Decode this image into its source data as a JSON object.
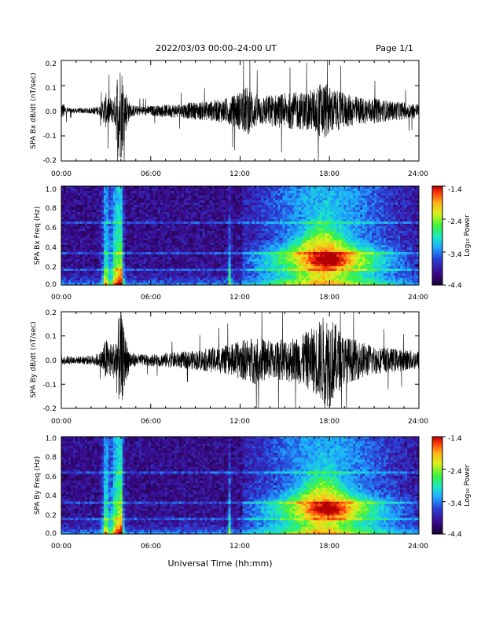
{
  "header": {
    "title": "2022/03/03  00:00–24:00 UT",
    "page": "Page 1/1"
  },
  "footer": {
    "xlabel": "Universal Time (hh:mm)"
  },
  "colors": {
    "trace": "#000000",
    "colormap": [
      "#1a0033",
      "#3b0a8c",
      "#2a3fd6",
      "#1ea8ff",
      "#19e6c8",
      "#3df23d",
      "#d9f21a",
      "#ffb31a",
      "#ff3a0d",
      "#b30000"
    ]
  },
  "chart_data": [
    {
      "id": "bx-time",
      "type": "line",
      "ylabel": "SPA Bx dB/dt (nT/sec)",
      "xticks": [
        "00:00",
        "06:00",
        "12:00",
        "18:00",
        "24:00"
      ],
      "xlim": [
        0,
        24
      ],
      "ylim": [
        -0.2,
        0.2
      ],
      "yticks": [
        "0.2",
        "0.1",
        "0.0",
        "-0.1",
        "-0.2"
      ],
      "envelope": {
        "hours": [
          0,
          0.2,
          0.5,
          1,
          2,
          2.6,
          3.0,
          3.4,
          3.6,
          3.8,
          4.0,
          4.3,
          4.6,
          5,
          6,
          7,
          8,
          9,
          10,
          10.5,
          11,
          11.5,
          12,
          12.5,
          13,
          13.5,
          14,
          15,
          16,
          16.5,
          17,
          17.5,
          18,
          18.5,
          19,
          20,
          21,
          22,
          23,
          24
        ],
        "amplitude": [
          0.04,
          0.025,
          0.012,
          0.01,
          0.012,
          0.02,
          0.07,
          0.05,
          0.06,
          0.19,
          0.2,
          0.09,
          0.03,
          0.02,
          0.02,
          0.025,
          0.03,
          0.035,
          0.04,
          0.045,
          0.05,
          0.06,
          0.08,
          0.1,
          0.07,
          0.06,
          0.065,
          0.07,
          0.075,
          0.08,
          0.09,
          0.12,
          0.1,
          0.08,
          0.07,
          0.055,
          0.05,
          0.04,
          0.035,
          0.03
        ]
      }
    },
    {
      "id": "bx-spec",
      "type": "heatmap",
      "ylabel": "SPA Bx Freq (Hz)",
      "xticks": [
        "00:00",
        "06:00",
        "12:00",
        "18:00",
        "24:00"
      ],
      "xlim": [
        0,
        24
      ],
      "ylim": [
        0,
        1.0
      ],
      "yticks": [
        "1.0",
        "0.8",
        "0.6",
        "0.4",
        "0.2",
        "0.0"
      ],
      "colorbar": {
        "label": "Log₁₀ Power",
        "range": [
          -4.4,
          -1.4
        ],
        "ticks": [
          "-1.4",
          "-2.4",
          "-3.4",
          "-4.4"
        ]
      }
    },
    {
      "id": "by-time",
      "type": "line",
      "ylabel": "SPA By dB/dt (nT/sec)",
      "xticks": [
        "00:00",
        "06:00",
        "12:00",
        "18:00",
        "24:00"
      ],
      "xlim": [
        0,
        24
      ],
      "ylim": [
        -0.2,
        0.2
      ],
      "yticks": [
        "0.2",
        "0.1",
        "0.0",
        "-0.1",
        "-0.2"
      ],
      "envelope": {
        "hours": [
          0,
          0.5,
          1,
          2,
          2.6,
          3.0,
          3.4,
          3.6,
          3.8,
          4.0,
          4.3,
          4.6,
          5,
          6,
          7,
          8,
          9,
          10,
          10.5,
          11,
          11.5,
          12,
          12.5,
          13,
          13.5,
          14,
          15,
          16,
          16.5,
          17,
          17.5,
          18,
          18.5,
          19,
          20,
          21,
          22,
          23,
          24
        ],
        "amplitude": [
          0.02,
          0.018,
          0.015,
          0.02,
          0.03,
          0.09,
          0.07,
          0.08,
          0.17,
          0.2,
          0.1,
          0.04,
          0.025,
          0.025,
          0.03,
          0.035,
          0.04,
          0.05,
          0.055,
          0.06,
          0.07,
          0.08,
          0.09,
          0.1,
          0.09,
          0.08,
          0.09,
          0.1,
          0.12,
          0.14,
          0.18,
          0.2,
          0.14,
          0.1,
          0.08,
          0.06,
          0.05,
          0.045,
          0.04
        ]
      }
    },
    {
      "id": "by-spec",
      "type": "heatmap",
      "ylabel": "SPA By Freq (Hz)",
      "xticks": [
        "00:00",
        "06:00",
        "12:00",
        "18:00",
        "24:00"
      ],
      "xlim": [
        0,
        24
      ],
      "ylim": [
        0,
        1.0
      ],
      "yticks": [
        "1.0",
        "0.8",
        "0.6",
        "0.4",
        "0.2",
        "0.0"
      ],
      "colorbar": {
        "label": "Log₁₀ Power",
        "range": [
          -4.4,
          -1.4
        ],
        "ticks": [
          "-1.4",
          "-2.4",
          "-3.4",
          "-4.4"
        ]
      }
    }
  ]
}
